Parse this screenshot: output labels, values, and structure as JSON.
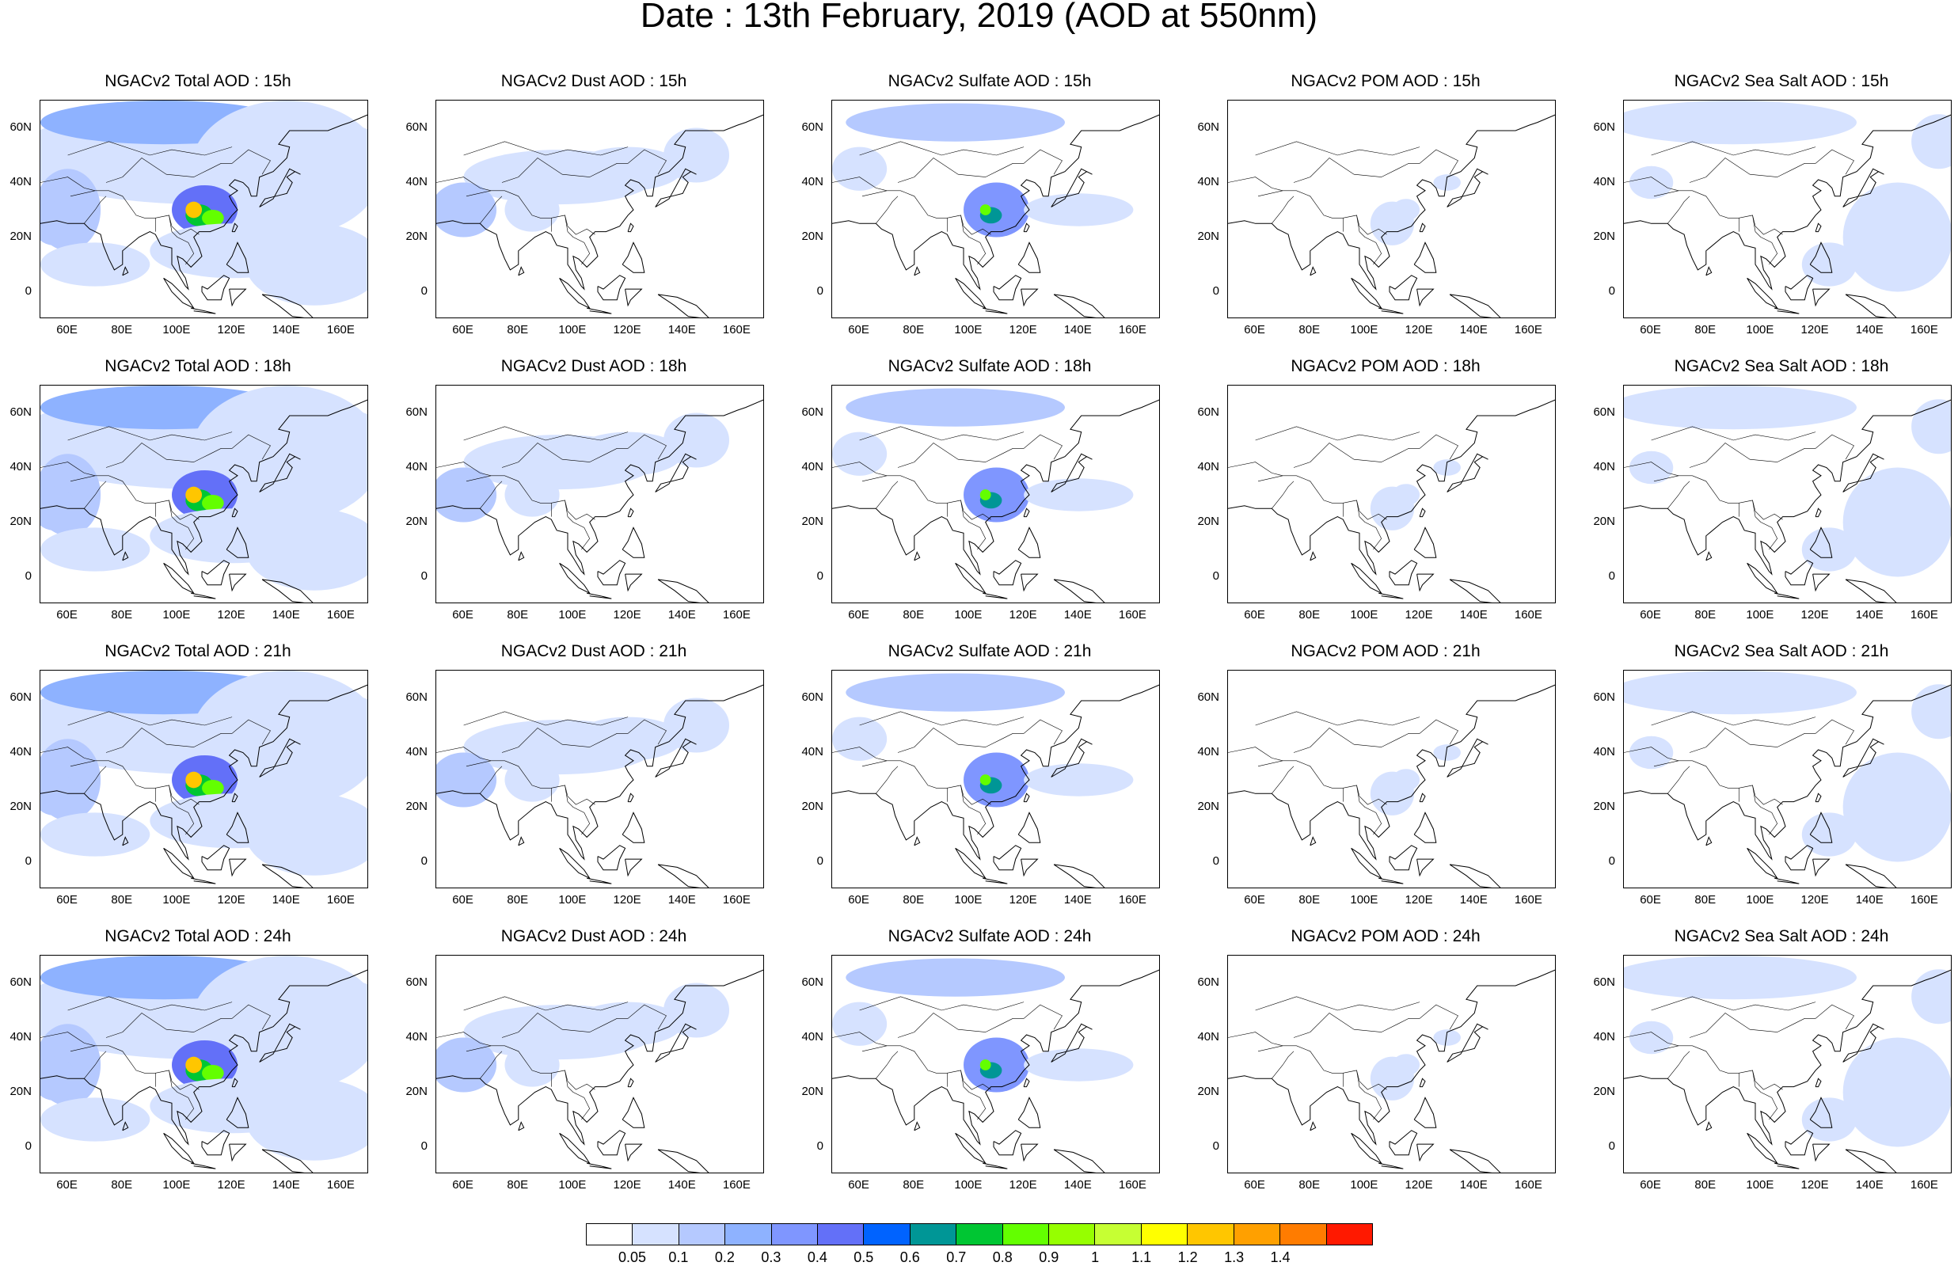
{
  "title": "Date : 13th February, 2019 (AOD at 550nm)",
  "panel_titles": [
    [
      "NGACv2 Total AOD : 15h",
      "NGACv2 Dust AOD : 15h",
      "NGACv2 Sulfate AOD : 15h",
      "NGACv2 POM AOD : 15h",
      "NGACv2 Sea Salt AOD : 15h"
    ],
    [
      "NGACv2 Total AOD : 18h",
      "NGACv2 Dust AOD : 18h",
      "NGACv2 Sulfate AOD : 18h",
      "NGACv2 POM AOD : 18h",
      "NGACv2 Sea Salt AOD : 18h"
    ],
    [
      "NGACv2 Total AOD : 21h",
      "NGACv2 Dust AOD : 21h",
      "NGACv2 Sulfate AOD : 21h",
      "NGACv2 POM AOD : 21h",
      "NGACv2 Sea Salt AOD : 21h"
    ],
    [
      "NGACv2 Total AOD : 24h",
      "NGACv2 Dust AOD : 24h",
      "NGACv2 Sulfate AOD : 24h",
      "NGACv2 POM AOD : 24h",
      "NGACv2 Sea Salt  AOD : 24h"
    ]
  ],
  "lat_ticks": [
    "60N",
    "40N",
    "20N",
    "0"
  ],
  "lon_ticks": [
    "60E",
    "80E",
    "100E",
    "120E",
    "140E",
    "160E"
  ],
  "colorbar": {
    "labels": [
      "0.05",
      "0.1",
      "0.2",
      "0.3",
      "0.4",
      "0.5",
      "0.6",
      "0.7",
      "0.8",
      "0.9",
      "1",
      "1.1",
      "1.2",
      "1.3",
      "1.4"
    ],
    "colors": [
      "#ffffff",
      "#d6e2ff",
      "#b5c9ff",
      "#8eb2ff",
      "#7f96ff",
      "#6370f8",
      "#0063ff",
      "#009696",
      "#00c633",
      "#63ff00",
      "#96ff00",
      "#c6ff33",
      "#ffff00",
      "#ffc600",
      "#ffa000",
      "#ff7c00",
      "#ff1900"
    ]
  },
  "map_extent": {
    "lon": [
      50,
      170
    ],
    "lat": [
      -10,
      70
    ]
  },
  "species_intensity": {
    "Total": "high",
    "Dust": "low",
    "Sulfate": "medium",
    "POM": "low",
    "Sea Salt": "low"
  }
}
